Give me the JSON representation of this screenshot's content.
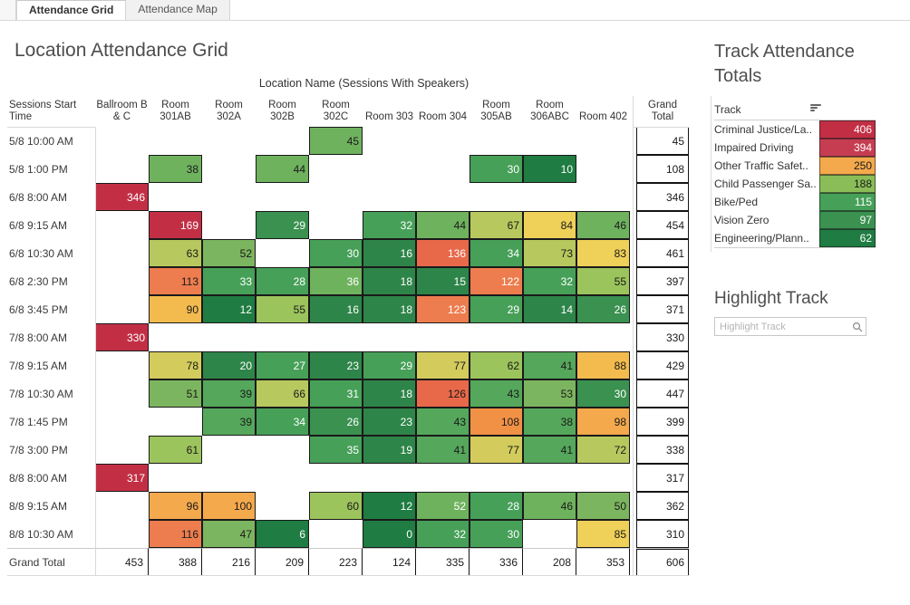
{
  "tabs": [
    {
      "label": "Attendance Grid",
      "active": true
    },
    {
      "label": "Attendance Map",
      "active": false
    }
  ],
  "main": {
    "title": "Location Attendance Grid",
    "grid": {
      "column_axis_title": "Location Name (Sessions With Speakers)",
      "row_header": "Sessions Start Time",
      "grand_total_label": "Grand Total",
      "columns": [
        "Ballroom B & C",
        "Room 301AB",
        "Room 302A",
        "Room 302B",
        "Room 302C",
        "Room 303",
        "Room 304",
        "Room 305AB",
        "Room 306ABC",
        "Room 402"
      ],
      "rows": [
        {
          "time": "5/8 10:00 AM",
          "total": 45,
          "cells": [
            {
              "col": 4,
              "v": 45,
              "c": "ml",
              "t": "b"
            }
          ]
        },
        {
          "time": "5/8 1:00 PM",
          "total": 108,
          "cells": [
            {
              "col": 1,
              "v": 38,
              "c": "ml",
              "t": "b"
            },
            {
              "col": 3,
              "v": 44,
              "c": "ml",
              "t": "b"
            },
            {
              "col": 7,
              "v": 30,
              "c": "g",
              "t": "w"
            },
            {
              "col": 8,
              "v": 10,
              "c": "dd",
              "t": "w"
            }
          ]
        },
        {
          "time": "6/8 8:00 AM",
          "total": 346,
          "cells": [
            {
              "col": 0,
              "v": 346,
              "c": "r",
              "t": "w"
            }
          ]
        },
        {
          "time": "6/8 9:15 AM",
          "total": 454,
          "cells": [
            {
              "col": 1,
              "v": 169,
              "c": "r",
              "t": "w"
            },
            {
              "col": 3,
              "v": 29,
              "c": "g2",
              "t": "w"
            },
            {
              "col": 5,
              "v": 32,
              "c": "g",
              "t": "w"
            },
            {
              "col": 6,
              "v": 44,
              "c": "ml",
              "t": "b"
            },
            {
              "col": 7,
              "v": 67,
              "c": "yg",
              "t": "b"
            },
            {
              "col": 8,
              "v": 84,
              "c": "y",
              "t": "b"
            },
            {
              "col": 9,
              "v": 46,
              "c": "ml",
              "t": "b"
            }
          ]
        },
        {
          "time": "6/8 10:30 AM",
          "total": 461,
          "cells": [
            {
              "col": 1,
              "v": 63,
              "c": "yg",
              "t": "b"
            },
            {
              "col": 2,
              "v": 52,
              "c": "pg",
              "t": "b"
            },
            {
              "col": 4,
              "v": 30,
              "c": "g",
              "t": "w"
            },
            {
              "col": 5,
              "v": 16,
              "c": "dg",
              "t": "w"
            },
            {
              "col": 6,
              "v": 136,
              "c": "or",
              "t": "w"
            },
            {
              "col": 7,
              "v": 34,
              "c": "g",
              "t": "w"
            },
            {
              "col": 8,
              "v": 73,
              "c": "yg",
              "t": "b"
            },
            {
              "col": 9,
              "v": 83,
              "c": "y",
              "t": "b"
            }
          ]
        },
        {
          "time": "6/8 2:30 PM",
          "total": 397,
          "cells": [
            {
              "col": 1,
              "v": 113,
              "c": "o",
              "t": "b"
            },
            {
              "col": 2,
              "v": 33,
              "c": "g",
              "t": "w"
            },
            {
              "col": 3,
              "v": 28,
              "c": "g",
              "t": "w"
            },
            {
              "col": 4,
              "v": 36,
              "c": "ml",
              "t": "w"
            },
            {
              "col": 5,
              "v": 18,
              "c": "dg",
              "t": "w"
            },
            {
              "col": 6,
              "v": 15,
              "c": "dg",
              "t": "w"
            },
            {
              "col": 7,
              "v": 122,
              "c": "o",
              "t": "w"
            },
            {
              "col": 8,
              "v": 32,
              "c": "g",
              "t": "w"
            },
            {
              "col": 9,
              "v": 55,
              "c": "lg",
              "t": "b"
            }
          ]
        },
        {
          "time": "6/8 3:45 PM",
          "total": 371,
          "cells": [
            {
              "col": 1,
              "v": 90,
              "c": "yo",
              "t": "b"
            },
            {
              "col": 2,
              "v": 12,
              "c": "dd",
              "t": "w"
            },
            {
              "col": 3,
              "v": 55,
              "c": "lg",
              "t": "b"
            },
            {
              "col": 4,
              "v": 16,
              "c": "dg",
              "t": "w"
            },
            {
              "col": 5,
              "v": 18,
              "c": "dg",
              "t": "w"
            },
            {
              "col": 6,
              "v": 123,
              "c": "o",
              "t": "w"
            },
            {
              "col": 7,
              "v": 29,
              "c": "g",
              "t": "w"
            },
            {
              "col": 8,
              "v": 14,
              "c": "dg",
              "t": "w"
            },
            {
              "col": 9,
              "v": 26,
              "c": "g2",
              "t": "w"
            }
          ]
        },
        {
          "time": "7/8 8:00 AM",
          "total": 330,
          "cells": [
            {
              "col": 0,
              "v": 330,
              "c": "r",
              "t": "w"
            }
          ]
        },
        {
          "time": "7/8 9:15 AM",
          "total": 429,
          "cells": [
            {
              "col": 1,
              "v": 78,
              "c": "y2",
              "t": "b"
            },
            {
              "col": 2,
              "v": 20,
              "c": "dg",
              "t": "w"
            },
            {
              "col": 3,
              "v": 27,
              "c": "g",
              "t": "w"
            },
            {
              "col": 4,
              "v": 23,
              "c": "dg",
              "t": "w"
            },
            {
              "col": 5,
              "v": 29,
              "c": "g",
              "t": "w"
            },
            {
              "col": 6,
              "v": 77,
              "c": "y2",
              "t": "b"
            },
            {
              "col": 7,
              "v": 62,
              "c": "lg",
              "t": "b"
            },
            {
              "col": 8,
              "v": 41,
              "c": "m",
              "t": "b"
            },
            {
              "col": 9,
              "v": 88,
              "c": "yo",
              "t": "b"
            }
          ]
        },
        {
          "time": "7/8 10:30 AM",
          "total": 447,
          "cells": [
            {
              "col": 1,
              "v": 51,
              "c": "pg",
              "t": "b"
            },
            {
              "col": 2,
              "v": 39,
              "c": "m",
              "t": "b"
            },
            {
              "col": 3,
              "v": 66,
              "c": "yg",
              "t": "b"
            },
            {
              "col": 4,
              "v": 31,
              "c": "g",
              "t": "w"
            },
            {
              "col": 5,
              "v": 18,
              "c": "dg",
              "t": "w"
            },
            {
              "col": 6,
              "v": 126,
              "c": "or",
              "t": "b"
            },
            {
              "col": 7,
              "v": 43,
              "c": "m",
              "t": "b"
            },
            {
              "col": 8,
              "v": 53,
              "c": "pg",
              "t": "b"
            },
            {
              "col": 9,
              "v": 30,
              "c": "g2",
              "t": "w"
            }
          ]
        },
        {
          "time": "7/8 1:45 PM",
          "total": 399,
          "cells": [
            {
              "col": 2,
              "v": 39,
              "c": "m",
              "t": "b"
            },
            {
              "col": 3,
              "v": 34,
              "c": "g",
              "t": "w"
            },
            {
              "col": 4,
              "v": 26,
              "c": "g2",
              "t": "w"
            },
            {
              "col": 5,
              "v": 23,
              "c": "dg",
              "t": "w"
            },
            {
              "col": 6,
              "v": 43,
              "c": "m",
              "t": "b"
            },
            {
              "col": 7,
              "v": 108,
              "c": "ol",
              "t": "b"
            },
            {
              "col": 8,
              "v": 38,
              "c": "m",
              "t": "b"
            },
            {
              "col": 9,
              "v": 98,
              "c": "a",
              "t": "b"
            }
          ]
        },
        {
          "time": "7/8 3:00 PM",
          "total": 338,
          "cells": [
            {
              "col": 1,
              "v": 61,
              "c": "lg",
              "t": "b"
            },
            {
              "col": 4,
              "v": 35,
              "c": "g",
              "t": "w"
            },
            {
              "col": 5,
              "v": 19,
              "c": "dg",
              "t": "w"
            },
            {
              "col": 6,
              "v": 41,
              "c": "m",
              "t": "b"
            },
            {
              "col": 7,
              "v": 77,
              "c": "y2",
              "t": "b"
            },
            {
              "col": 8,
              "v": 41,
              "c": "m",
              "t": "b"
            },
            {
              "col": 9,
              "v": 72,
              "c": "yg",
              "t": "b"
            }
          ]
        },
        {
          "time": "8/8 8:00 AM",
          "total": 317,
          "cells": [
            {
              "col": 0,
              "v": 317,
              "c": "r",
              "t": "w"
            }
          ]
        },
        {
          "time": "8/8 9:15 AM",
          "total": 362,
          "cells": [
            {
              "col": 1,
              "v": 96,
              "c": "a",
              "t": "b"
            },
            {
              "col": 2,
              "v": 100,
              "c": "a",
              "t": "b"
            },
            {
              "col": 4,
              "v": 60,
              "c": "lg",
              "t": "b"
            },
            {
              "col": 5,
              "v": 12,
              "c": "dd",
              "t": "w"
            },
            {
              "col": 6,
              "v": 52,
              "c": "ml",
              "t": "w"
            },
            {
              "col": 7,
              "v": 28,
              "c": "g",
              "t": "w"
            },
            {
              "col": 8,
              "v": 46,
              "c": "ml",
              "t": "b"
            },
            {
              "col": 9,
              "v": 50,
              "c": "pg",
              "t": "b"
            }
          ]
        },
        {
          "time": "8/8 10:30 AM",
          "total": 310,
          "cells": [
            {
              "col": 1,
              "v": 116,
              "c": "o",
              "t": "b"
            },
            {
              "col": 2,
              "v": 47,
              "c": "pg",
              "t": "b"
            },
            {
              "col": 3,
              "v": 6,
              "c": "dd",
              "t": "w"
            },
            {
              "col": 5,
              "v": 0,
              "c": "dd",
              "t": "w"
            },
            {
              "col": 6,
              "v": 32,
              "c": "g",
              "t": "w"
            },
            {
              "col": 7,
              "v": 30,
              "c": "g",
              "t": "w"
            },
            {
              "col": 9,
              "v": 85,
              "c": "y",
              "t": "b"
            }
          ]
        }
      ],
      "grand_totals": [
        453,
        388,
        216,
        209,
        223,
        124,
        335,
        336,
        208,
        353
      ],
      "grand_total_overall": 606
    }
  },
  "sidebar": {
    "totals_title": "Track Attendance Totals",
    "track_header": "Track",
    "sort_icon": "sort-descending-bars",
    "tracks": [
      {
        "label": "Criminal Justice/La..",
        "value": 406,
        "c": "r",
        "t": "w"
      },
      {
        "label": "Impaired Driving",
        "value": 394,
        "c": "r2",
        "t": "w"
      },
      {
        "label": "Other Traffic Safet..",
        "value": 250,
        "c": "a",
        "t": "b"
      },
      {
        "label": "Child Passenger Sa..",
        "value": 188,
        "c": "lg2",
        "t": "b"
      },
      {
        "label": "Bike/Ped",
        "value": 115,
        "c": "g",
        "t": "w"
      },
      {
        "label": "Vision Zero",
        "value": 97,
        "c": "g2",
        "t": "w"
      },
      {
        "label": "Engineering/Plann..",
        "value": 62,
        "c": "dd",
        "t": "w"
      }
    ],
    "highlight_title": "Highlight Track",
    "highlight_placeholder": "Highlight Track",
    "search_icon": "magnifier"
  },
  "palette": {
    "r": "#c22f45",
    "r2": "#c63d52",
    "or": "#e8694a",
    "o": "#ed7d4e",
    "ol": "#f19146",
    "a": "#f4a94c",
    "yo": "#f3bb4e",
    "y": "#efd058",
    "y2": "#d3cc5d",
    "yg": "#b7c95e",
    "lg": "#9cc45c",
    "lg2": "#8abd58",
    "pg": "#7cb55f",
    "ml": "#6fb25e",
    "m": "#55a75b",
    "g": "#46a058",
    "g2": "#3a9150",
    "dg": "#2e8549",
    "dd": "#1f7c42"
  },
  "text_colors": {
    "w": "#ffffff",
    "b": "#1a1a1a"
  }
}
